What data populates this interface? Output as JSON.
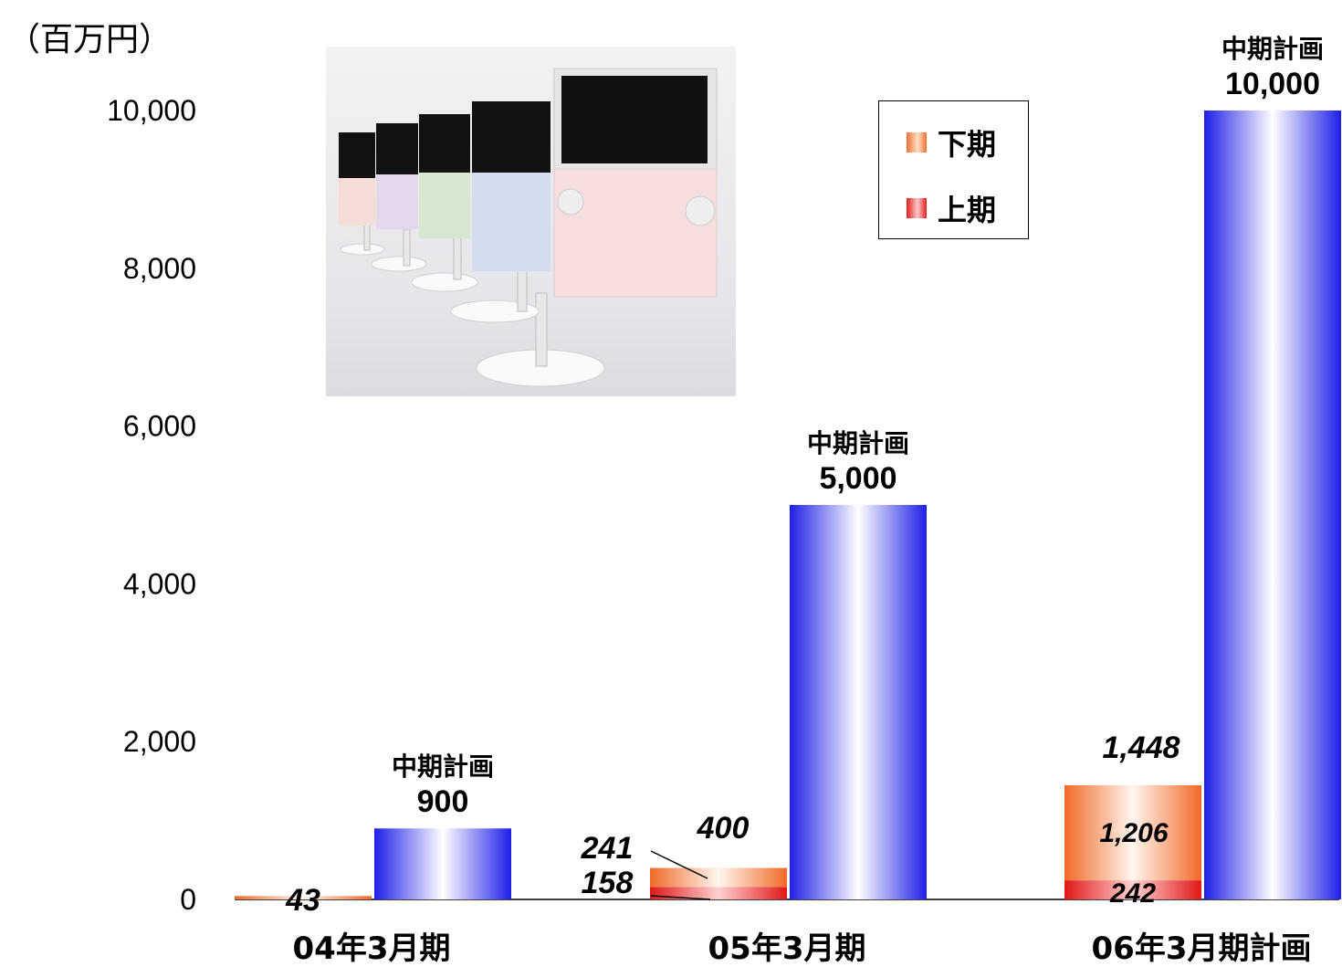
{
  "unit_label": "（百万円）",
  "legend": [
    {
      "label": "下期",
      "color": "#f07030"
    },
    {
      "label": "上期",
      "color": "#e02020"
    }
  ],
  "photo": {
    "icon": "monitor-display-photo"
  },
  "chart_data": {
    "type": "bar",
    "stacked_with_plan": true,
    "ylim": [
      0,
      10000
    ],
    "yticks": [
      "0",
      "2,000",
      "4,000",
      "6,000",
      "8,000",
      "10,000"
    ],
    "ytick_values": [
      0,
      2000,
      4000,
      6000,
      8000,
      10000
    ],
    "categories": [
      "04年3月期",
      "05年3月期",
      "06年3月期計画"
    ],
    "series": [
      {
        "name": "上期",
        "color": "#e02020",
        "values": [
          null,
          158,
          242
        ],
        "labels": [
          "",
          "158",
          "242"
        ]
      },
      {
        "name": "下期",
        "color": "#f07030",
        "values": [
          43,
          241,
          1206
        ],
        "labels": [
          "",
          "241",
          "1,206"
        ]
      }
    ],
    "actual_totals": [
      43,
      400,
      1448
    ],
    "actual_total_labels": [
      "43",
      "400",
      "1,448"
    ],
    "plan": {
      "label": "中期計画",
      "color": "#2020f0",
      "values": [
        900,
        5000,
        10000
      ],
      "value_labels": [
        "900",
        "5,000",
        "10,000"
      ]
    }
  }
}
